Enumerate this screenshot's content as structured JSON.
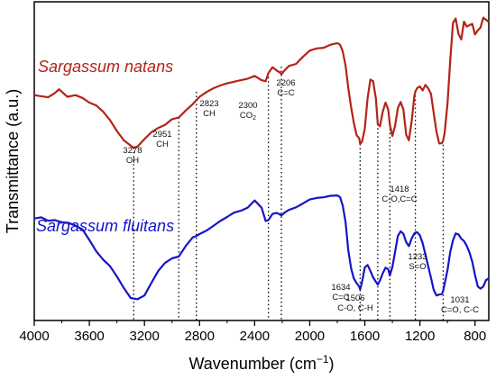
{
  "chart_data": {
    "type": "line",
    "xlabel": "Wavenumber (cm",
    "xlabel_sup": "−1",
    "xlabel_close": ")",
    "ylabel": "Transmittance (a.u.)",
    "xlim": [
      4000,
      700
    ],
    "x_reversed": true,
    "ylim": [
      0,
      1
    ],
    "y_ticks_shown": false,
    "grid": false,
    "x_tick_labels": [
      "4000",
      "3600",
      "3200",
      "2800",
      "2400",
      "2000",
      "1600",
      "1200",
      "800"
    ],
    "x_tick_values": [
      4000,
      3600,
      3200,
      2800,
      2400,
      2000,
      1600,
      1200,
      800
    ],
    "series": [
      {
        "name": "Sargassum natans",
        "color": "#b22418",
        "x": [
          4000,
          3900,
          3850,
          3820,
          3760,
          3700,
          3650,
          3600,
          3550,
          3500,
          3450,
          3400,
          3350,
          3300,
          3278,
          3250,
          3200,
          3150,
          3100,
          3050,
          3000,
          2951,
          2900,
          2850,
          2823,
          2800,
          2750,
          2700,
          2650,
          2600,
          2550,
          2500,
          2450,
          2400,
          2350,
          2320,
          2300,
          2270,
          2240,
          2220,
          2206,
          2180,
          2150,
          2100,
          2050,
          2000,
          1950,
          1900,
          1850,
          1800,
          1780,
          1760,
          1740,
          1720,
          1700,
          1680,
          1660,
          1640,
          1634,
          1620,
          1600,
          1580,
          1560,
          1540,
          1520,
          1506,
          1490,
          1470,
          1450,
          1430,
          1418,
          1400,
          1380,
          1360,
          1340,
          1320,
          1300,
          1280,
          1260,
          1240,
          1233,
          1220,
          1200,
          1180,
          1160,
          1140,
          1120,
          1100,
          1080,
          1060,
          1040,
          1031,
          1020,
          1000,
          980,
          960,
          940,
          920,
          900,
          880,
          860,
          840,
          820,
          800,
          780,
          760,
          740,
          720,
          700
        ],
        "values": [
          0.706,
          0.699,
          0.713,
          0.725,
          0.701,
          0.706,
          0.697,
          0.682,
          0.673,
          0.653,
          0.626,
          0.591,
          0.561,
          0.544,
          0.537,
          0.541,
          0.565,
          0.587,
          0.601,
          0.611,
          0.629,
          0.634,
          0.657,
          0.677,
          0.69,
          0.701,
          0.716,
          0.728,
          0.737,
          0.744,
          0.749,
          0.754,
          0.759,
          0.768,
          0.754,
          0.751,
          0.777,
          0.796,
          0.785,
          0.78,
          0.773,
          0.787,
          0.8,
          0.806,
          0.829,
          0.849,
          0.856,
          0.858,
          0.868,
          0.873,
          0.868,
          0.846,
          0.801,
          0.729,
          0.668,
          0.618,
          0.578,
          0.567,
          0.549,
          0.557,
          0.598,
          0.696,
          0.756,
          0.751,
          0.696,
          0.613,
          0.606,
          0.653,
          0.682,
          0.66,
          0.611,
          0.575,
          0.608,
          0.665,
          0.684,
          0.66,
          0.579,
          0.561,
          0.623,
          0.704,
          0.718,
          0.729,
          0.734,
          0.721,
          0.739,
          0.728,
          0.71,
          0.649,
          0.589,
          0.551,
          0.552,
          0.56,
          0.586,
          0.678,
          0.815,
          0.938,
          0.952,
          0.903,
          0.885,
          0.942,
          0.926,
          0.931,
          0.935,
          0.901,
          0.914,
          0.923,
          0.955,
          0.948,
          0.941
        ]
      },
      {
        "name": "Sargassum fluitans",
        "color": "#1515c8",
        "x": [
          4000,
          3950,
          3900,
          3850,
          3800,
          3750,
          3700,
          3650,
          3600,
          3550,
          3500,
          3450,
          3400,
          3350,
          3300,
          3250,
          3200,
          3150,
          3100,
          3050,
          3000,
          2951,
          2900,
          2850,
          2823,
          2800,
          2750,
          2700,
          2650,
          2600,
          2550,
          2500,
          2450,
          2400,
          2350,
          2320,
          2300,
          2270,
          2240,
          2220,
          2206,
          2180,
          2150,
          2100,
          2050,
          2000,
          1950,
          1900,
          1850,
          1800,
          1780,
          1760,
          1740,
          1720,
          1700,
          1680,
          1660,
          1640,
          1634,
          1620,
          1600,
          1580,
          1560,
          1540,
          1520,
          1506,
          1490,
          1470,
          1450,
          1430,
          1418,
          1400,
          1380,
          1360,
          1340,
          1320,
          1300,
          1280,
          1260,
          1240,
          1233,
          1220,
          1200,
          1180,
          1160,
          1140,
          1120,
          1100,
          1080,
          1060,
          1040,
          1031,
          1020,
          1000,
          980,
          960,
          940,
          920,
          900,
          880,
          860,
          840,
          820,
          800,
          780,
          760,
          740,
          720,
          700
        ],
        "values": [
          0.31,
          0.314,
          0.303,
          0.305,
          0.298,
          0.296,
          0.287,
          0.275,
          0.241,
          0.205,
          0.178,
          0.157,
          0.124,
          0.087,
          0.055,
          0.051,
          0.063,
          0.103,
          0.142,
          0.168,
          0.182,
          0.188,
          0.222,
          0.249,
          0.254,
          0.26,
          0.271,
          0.286,
          0.302,
          0.315,
          0.329,
          0.335,
          0.345,
          0.368,
          0.345,
          0.302,
          0.305,
          0.325,
          0.328,
          0.324,
          0.32,
          0.33,
          0.338,
          0.346,
          0.358,
          0.371,
          0.376,
          0.378,
          0.383,
          0.384,
          0.379,
          0.351,
          0.298,
          0.208,
          0.151,
          0.118,
          0.103,
          0.091,
          0.082,
          0.107,
          0.153,
          0.161,
          0.142,
          0.121,
          0.107,
          0.098,
          0.111,
          0.134,
          0.152,
          0.147,
          0.127,
          0.155,
          0.203,
          0.254,
          0.269,
          0.261,
          0.234,
          0.221,
          0.246,
          0.262,
          0.265,
          0.266,
          0.256,
          0.23,
          0.195,
          0.157,
          0.12,
          0.081,
          0.063,
          0.066,
          0.068,
          0.078,
          0.101,
          0.144,
          0.202,
          0.24,
          0.262,
          0.259,
          0.245,
          0.238,
          0.222,
          0.201,
          0.171,
          0.129,
          0.092,
          0.085,
          0.092,
          0.112,
          0.118
        ]
      }
    ],
    "annotations": [
      {
        "x": 3278,
        "lines": [
          "3278",
          "OH"
        ]
      },
      {
        "x": 2951,
        "lines": [
          "2951",
          "CH"
        ]
      },
      {
        "x": 2823,
        "lines": [
          "2823",
          "CH"
        ]
      },
      {
        "x": 2300,
        "lines": [
          "2300",
          "CO"
        ],
        "sub": "2"
      },
      {
        "x": 2206,
        "lines": [
          "2206",
          "C=C"
        ]
      },
      {
        "x": 1634,
        "lines": [
          "1634",
          "C=C"
        ]
      },
      {
        "x": 1506,
        "lines": [
          "1506",
          "C-O, C-H"
        ]
      },
      {
        "x": 1418,
        "lines": [
          "1418",
          "C-O,C=C"
        ]
      },
      {
        "x": 1233,
        "lines": [
          "1233",
          "S=O"
        ]
      },
      {
        "x": 1031,
        "lines": [
          "1031",
          "C=O, C-C"
        ]
      }
    ]
  }
}
